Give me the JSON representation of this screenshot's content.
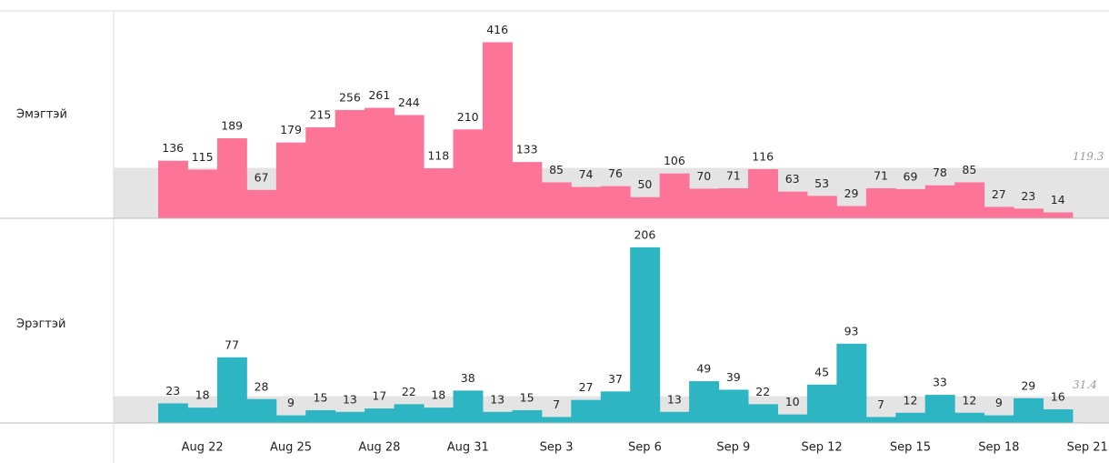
{
  "chart_data": {
    "type": "bar",
    "categories": [
      null,
      "Aug 22",
      null,
      null,
      "Aug 25",
      null,
      null,
      "Aug 28",
      null,
      null,
      "Aug 31",
      null,
      null,
      "Sep 3",
      null,
      null,
      "Sep 6",
      null,
      null,
      "Sep 9",
      null,
      null,
      "Sep 12",
      null,
      null,
      "Sep 15",
      null,
      null,
      "Sep 18",
      null,
      null,
      "Sep 21"
    ],
    "series": [
      {
        "name": "Эмэгтэй",
        "color": "#fd7499",
        "ylim": [
          0,
          490
        ],
        "reference_line": 119.3,
        "values": [
          136,
          115,
          189,
          67,
          179,
          215,
          256,
          261,
          244,
          118,
          210,
          416,
          133,
          85,
          74,
          76,
          50,
          106,
          70,
          71,
          116,
          63,
          53,
          29,
          71,
          69,
          78,
          85,
          27,
          23,
          14,
          null
        ]
      },
      {
        "name": "Эрэгтэй",
        "color": "#2db5c3",
        "ylim": [
          0,
          240
        ],
        "reference_line": 31.4,
        "values": [
          23,
          18,
          77,
          28,
          9,
          15,
          13,
          17,
          22,
          18,
          38,
          13,
          15,
          7,
          27,
          37,
          206,
          13,
          49,
          39,
          22,
          10,
          45,
          93,
          7,
          12,
          33,
          12,
          9,
          29,
          16,
          null
        ]
      }
    ]
  }
}
